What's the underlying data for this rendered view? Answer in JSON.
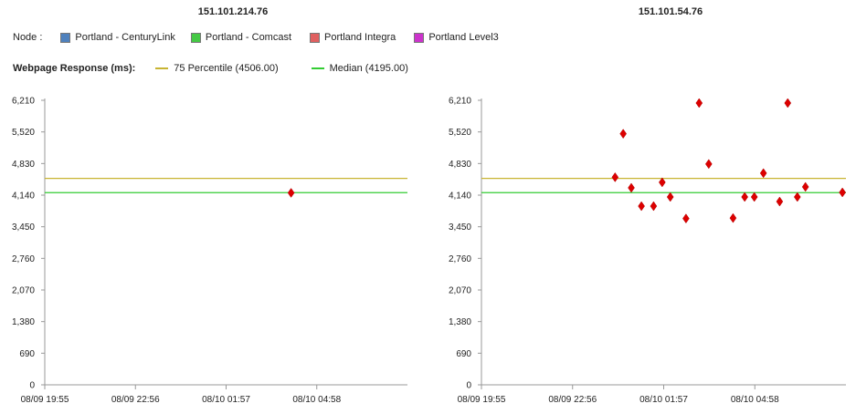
{
  "legend": {
    "node_label": "Node :",
    "nodes": [
      {
        "label": "Portland - CenturyLink",
        "color": "#4f81bd"
      },
      {
        "label": "Portland - Comcast",
        "color": "#44c944"
      },
      {
        "label": "Portland Integra",
        "color": "#e06060"
      },
      {
        "label": "Portland Level3",
        "color": "#cc33cc"
      }
    ],
    "metric_label": "Webpage Response (ms):",
    "lines": [
      {
        "label": "75 Percentile (4506.00)",
        "color": "#c8b432"
      },
      {
        "label": "Median (4195.00)",
        "color": "#33cc33"
      }
    ]
  },
  "chart_data": [
    {
      "type": "scatter",
      "title": "151.101.214.76",
      "y_ticks": [
        "6,210",
        "5,520",
        "4,830",
        "4,140",
        "3,450",
        "2,760",
        "2,070",
        "1,380",
        "690",
        "0"
      ],
      "ylim": [
        0,
        6210
      ],
      "x_ticks": [
        "08/09 19:55",
        "08/09 22:56",
        "08/10 01:57",
        "08/10 04:58"
      ],
      "xlim": [
        0,
        720
      ],
      "reference_lines": [
        {
          "name": "75 Percentile",
          "value": 4506,
          "color": "#c8b432"
        },
        {
          "name": "Median",
          "value": 4195,
          "color": "#33cc33"
        }
      ],
      "marker_color": "#dd0000",
      "points": [
        {
          "x": 489,
          "y": 4190
        }
      ]
    },
    {
      "type": "scatter",
      "title": "151.101.54.76",
      "y_ticks": [
        "6,210",
        "5,520",
        "4,830",
        "4,140",
        "3,450",
        "2,760",
        "2,070",
        "1,380",
        "690",
        "0"
      ],
      "ylim": [
        0,
        6210
      ],
      "x_ticks": [
        "08/09 19:55",
        "08/09 22:56",
        "08/10 01:57",
        "08/10 04:58"
      ],
      "xlim": [
        0,
        720
      ],
      "reference_lines": [
        {
          "name": "75 Percentile",
          "value": 4506,
          "color": "#c8b432"
        },
        {
          "name": "Median",
          "value": 4195,
          "color": "#33cc33"
        }
      ],
      "marker_color": "#dd0000",
      "points": [
        {
          "x": 264,
          "y": 4530
        },
        {
          "x": 280,
          "y": 5480
        },
        {
          "x": 296,
          "y": 4300
        },
        {
          "x": 316,
          "y": 3900
        },
        {
          "x": 340,
          "y": 3900
        },
        {
          "x": 357,
          "y": 4420
        },
        {
          "x": 373,
          "y": 4100
        },
        {
          "x": 404,
          "y": 3630
        },
        {
          "x": 430,
          "y": 6170
        },
        {
          "x": 449,
          "y": 4820
        },
        {
          "x": 497,
          "y": 3640
        },
        {
          "x": 520,
          "y": 4100
        },
        {
          "x": 539,
          "y": 4100
        },
        {
          "x": 557,
          "y": 4620
        },
        {
          "x": 589,
          "y": 4000
        },
        {
          "x": 605,
          "y": 6210
        },
        {
          "x": 624,
          "y": 4100
        },
        {
          "x": 640,
          "y": 4320
        },
        {
          "x": 713,
          "y": 4200
        }
      ]
    }
  ]
}
